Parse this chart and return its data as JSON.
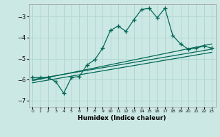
{
  "title": "",
  "xlabel": "Humidex (Indice chaleur)",
  "ylabel": "",
  "background_color": "#cce8e4",
  "grid_color": "#b0d8d0",
  "line_color": "#006655",
  "xlim": [
    -0.5,
    23.5
  ],
  "ylim": [
    -7.3,
    -2.4
  ],
  "yticks": [
    -7,
    -6,
    -5,
    -4,
    -3
  ],
  "xticks": [
    0,
    1,
    2,
    3,
    4,
    5,
    6,
    7,
    8,
    9,
    10,
    11,
    12,
    13,
    14,
    15,
    16,
    17,
    18,
    19,
    20,
    21,
    22,
    23
  ],
  "main_x": [
    0,
    1,
    2,
    3,
    4,
    5,
    6,
    7,
    8,
    9,
    10,
    11,
    12,
    13,
    14,
    15,
    16,
    17,
    18,
    19,
    20,
    21,
    22,
    23
  ],
  "main_y": [
    -5.9,
    -5.9,
    -5.9,
    -6.1,
    -6.65,
    -5.9,
    -5.85,
    -5.3,
    -5.05,
    -4.5,
    -3.65,
    -3.45,
    -3.7,
    -3.15,
    -2.65,
    -2.6,
    -3.05,
    -2.6,
    -3.9,
    -4.3,
    -4.55,
    -4.5,
    -4.4,
    -4.5
  ],
  "trend1_x": [
    0,
    23
  ],
  "trend1_y": [
    -6.05,
    -4.3
  ],
  "trend2_x": [
    0,
    23
  ],
  "trend2_y": [
    -6.0,
    -4.55
  ],
  "trend3_x": [
    0,
    23
  ],
  "trend3_y": [
    -6.15,
    -4.7
  ]
}
